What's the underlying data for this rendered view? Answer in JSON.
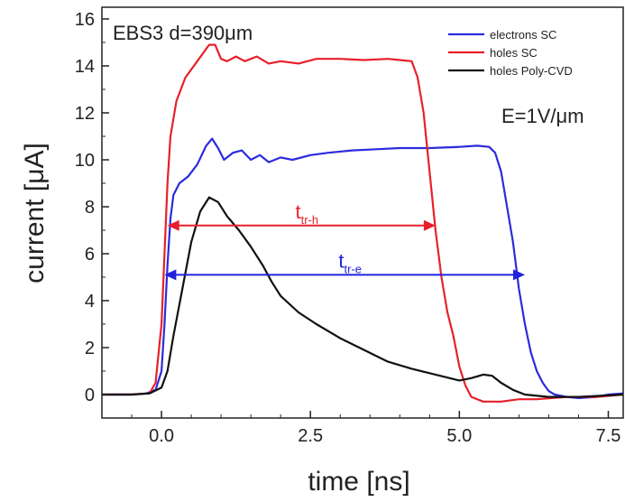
{
  "chart_data": {
    "type": "line",
    "xlabel": "time [ns]",
    "ylabel": "current [μA]",
    "xlim": [
      -1.0,
      7.75
    ],
    "ylim": [
      -1.0,
      16.5
    ],
    "xticks": [
      0.0,
      2.5,
      5.0,
      7.5
    ],
    "xtick_labels": [
      "0.0",
      "2.5",
      "5.0",
      "7.5"
    ],
    "yticks": [
      0,
      2,
      4,
      6,
      8,
      10,
      12,
      14,
      16
    ],
    "ytick_labels": [
      "0",
      "2",
      "4",
      "6",
      "8",
      "10",
      "12",
      "14",
      "16"
    ],
    "grid": false,
    "legend_position": "top-right",
    "annotations": {
      "sample": "EBS3  d=390μm",
      "field": "E=1V/μm"
    },
    "arrows": [
      {
        "main": "t",
        "sub": "tr-h",
        "color": "#e8202a",
        "x_start": 0.1,
        "x_end": 4.6,
        "y": 7.2
      },
      {
        "main": "t",
        "sub": "tr-e",
        "color": "#2222dd",
        "x_start": 0.05,
        "x_end": 6.1,
        "y": 5.1
      }
    ],
    "series": [
      {
        "name": "electrons SC",
        "color": "#2b2bdd",
        "points": [
          [
            -1.0,
            0.0
          ],
          [
            -0.5,
            0.0
          ],
          [
            -0.25,
            0.05
          ],
          [
            -0.1,
            0.2
          ],
          [
            0.0,
            1.0
          ],
          [
            0.05,
            3.0
          ],
          [
            0.1,
            5.5
          ],
          [
            0.15,
            7.5
          ],
          [
            0.2,
            8.5
          ],
          [
            0.3,
            9.0
          ],
          [
            0.45,
            9.3
          ],
          [
            0.6,
            9.8
          ],
          [
            0.75,
            10.6
          ],
          [
            0.85,
            10.9
          ],
          [
            0.95,
            10.5
          ],
          [
            1.05,
            10.0
          ],
          [
            1.2,
            10.3
          ],
          [
            1.35,
            10.4
          ],
          [
            1.5,
            10.0
          ],
          [
            1.65,
            10.2
          ],
          [
            1.8,
            9.9
          ],
          [
            2.0,
            10.1
          ],
          [
            2.2,
            10.0
          ],
          [
            2.5,
            10.2
          ],
          [
            2.8,
            10.3
          ],
          [
            3.2,
            10.4
          ],
          [
            3.6,
            10.45
          ],
          [
            4.0,
            10.5
          ],
          [
            4.5,
            10.5
          ],
          [
            5.0,
            10.55
          ],
          [
            5.3,
            10.6
          ],
          [
            5.5,
            10.55
          ],
          [
            5.6,
            10.3
          ],
          [
            5.7,
            9.5
          ],
          [
            5.8,
            8.0
          ],
          [
            5.9,
            6.5
          ],
          [
            6.0,
            4.5
          ],
          [
            6.1,
            3.0
          ],
          [
            6.2,
            1.8
          ],
          [
            6.3,
            1.0
          ],
          [
            6.4,
            0.5
          ],
          [
            6.5,
            0.15
          ],
          [
            6.6,
            0.0
          ],
          [
            6.8,
            -0.1
          ],
          [
            7.0,
            -0.15
          ],
          [
            7.3,
            -0.1
          ],
          [
            7.5,
            0.0
          ],
          [
            7.75,
            0.05
          ]
        ]
      },
      {
        "name": "holes SC",
        "color": "#e8202a",
        "points": [
          [
            -1.0,
            0.0
          ],
          [
            -0.5,
            0.0
          ],
          [
            -0.2,
            0.05
          ],
          [
            -0.1,
            0.5
          ],
          [
            0.0,
            3.0
          ],
          [
            0.05,
            6.0
          ],
          [
            0.1,
            9.0
          ],
          [
            0.15,
            11.0
          ],
          [
            0.25,
            12.5
          ],
          [
            0.4,
            13.5
          ],
          [
            0.6,
            14.2
          ],
          [
            0.8,
            14.9
          ],
          [
            0.9,
            14.9
          ],
          [
            1.0,
            14.3
          ],
          [
            1.1,
            14.2
          ],
          [
            1.25,
            14.4
          ],
          [
            1.4,
            14.2
          ],
          [
            1.6,
            14.4
          ],
          [
            1.8,
            14.1
          ],
          [
            2.0,
            14.2
          ],
          [
            2.3,
            14.1
          ],
          [
            2.6,
            14.3
          ],
          [
            3.0,
            14.3
          ],
          [
            3.4,
            14.25
          ],
          [
            3.8,
            14.3
          ],
          [
            4.0,
            14.25
          ],
          [
            4.2,
            14.2
          ],
          [
            4.3,
            13.5
          ],
          [
            4.4,
            12.0
          ],
          [
            4.5,
            9.5
          ],
          [
            4.6,
            7.0
          ],
          [
            4.7,
            5.0
          ],
          [
            4.8,
            3.5
          ],
          [
            4.9,
            2.5
          ],
          [
            5.0,
            1.2
          ],
          [
            5.1,
            0.4
          ],
          [
            5.2,
            -0.1
          ],
          [
            5.4,
            -0.3
          ],
          [
            5.7,
            -0.3
          ],
          [
            6.0,
            -0.2
          ],
          [
            6.3,
            -0.2
          ],
          [
            6.8,
            -0.1
          ],
          [
            7.3,
            -0.1
          ],
          [
            7.75,
            0.0
          ]
        ]
      },
      {
        "name": "holes Poly-CVD",
        "color": "#111111",
        "points": [
          [
            -1.0,
            0.0
          ],
          [
            -0.5,
            0.0
          ],
          [
            -0.2,
            0.05
          ],
          [
            0.0,
            0.3
          ],
          [
            0.1,
            1.0
          ],
          [
            0.2,
            2.5
          ],
          [
            0.35,
            4.5
          ],
          [
            0.5,
            6.5
          ],
          [
            0.65,
            7.8
          ],
          [
            0.8,
            8.4
          ],
          [
            0.95,
            8.2
          ],
          [
            1.1,
            7.6
          ],
          [
            1.3,
            7.0
          ],
          [
            1.5,
            6.3
          ],
          [
            1.7,
            5.5
          ],
          [
            1.85,
            4.8
          ],
          [
            2.0,
            4.2
          ],
          [
            2.3,
            3.5
          ],
          [
            2.6,
            3.0
          ],
          [
            3.0,
            2.4
          ],
          [
            3.4,
            1.9
          ],
          [
            3.8,
            1.4
          ],
          [
            4.2,
            1.1
          ],
          [
            4.6,
            0.85
          ],
          [
            5.0,
            0.6
          ],
          [
            5.2,
            0.7
          ],
          [
            5.4,
            0.85
          ],
          [
            5.55,
            0.8
          ],
          [
            5.7,
            0.5
          ],
          [
            5.9,
            0.2
          ],
          [
            6.1,
            0.0
          ],
          [
            6.5,
            -0.1
          ],
          [
            7.0,
            -0.1
          ],
          [
            7.75,
            0.0
          ]
        ]
      }
    ]
  }
}
